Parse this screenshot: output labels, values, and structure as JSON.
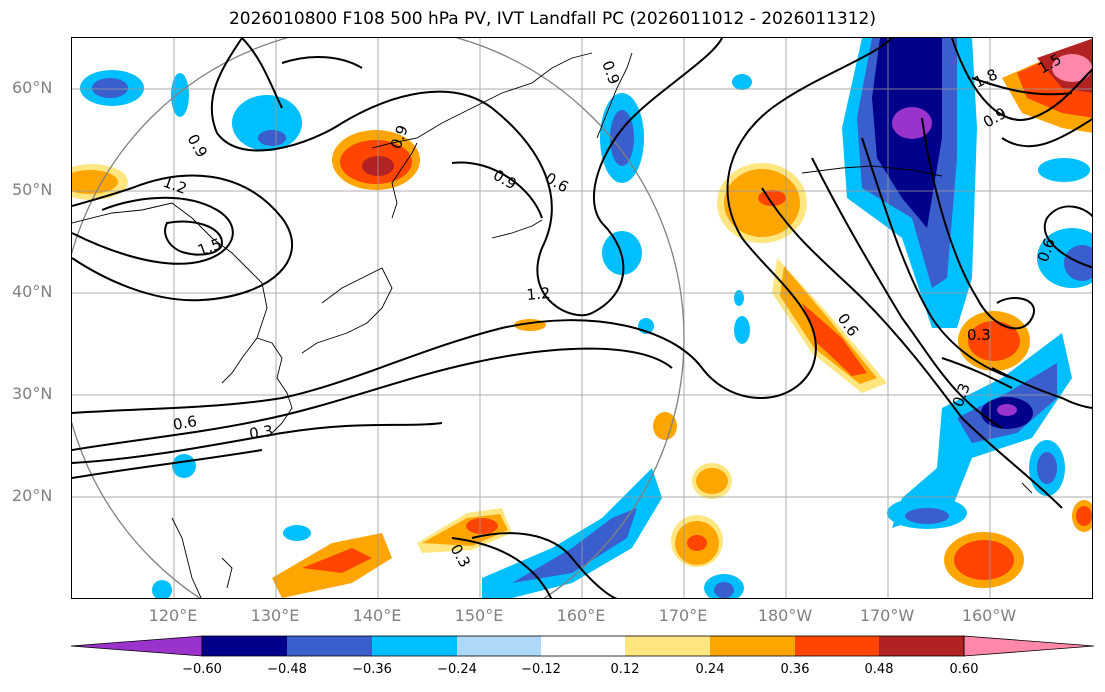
{
  "title": "2026010800 F108 500 hPa PV, IVT Landfall PC (2026011012 - 2026011312)",
  "lat_labels": [
    "60°N",
    "50°N",
    "40°N",
    "30°N",
    "20°N"
  ],
  "lon_labels": [
    "120°E",
    "130°E",
    "140°E",
    "150°E",
    "160°E",
    "170°E",
    "180°W",
    "170°W",
    "160°W"
  ],
  "contour_labels": [
    "0.9",
    "1.2",
    "1.5",
    "0.9",
    "0.6",
    "0.9",
    "1.2",
    "0.6",
    "0.3",
    "0.3",
    "1.8",
    "1.5",
    "0.6",
    "0.9",
    "0.3",
    "0.6",
    "0.9",
    "0.3"
  ],
  "colorbar": {
    "ticks": [
      "−0.60",
      "−0.48",
      "−0.36",
      "−0.24",
      "−0.12",
      "0.12",
      "0.24",
      "0.36",
      "0.48",
      "0.60"
    ],
    "colors": [
      "#9933cc",
      "#00008b",
      "#3a5fcd",
      "#00bfff",
      "#00bfff",
      "#add8f7",
      "#ffffff",
      "#ffe680",
      "#ffa500",
      "#ff4500",
      "#b22222",
      "#ff88aa"
    ]
  },
  "palette": {
    "purple": "#9933cc",
    "navy": "#00008b",
    "blue": "#3a5fcd",
    "cyan": "#00bfff",
    "lightblue": "#add8f7",
    "yellow": "#ffe680",
    "orange": "#ffa500",
    "red": "#ff4500",
    "darkred": "#b22222",
    "pink": "#ff88aa"
  }
}
